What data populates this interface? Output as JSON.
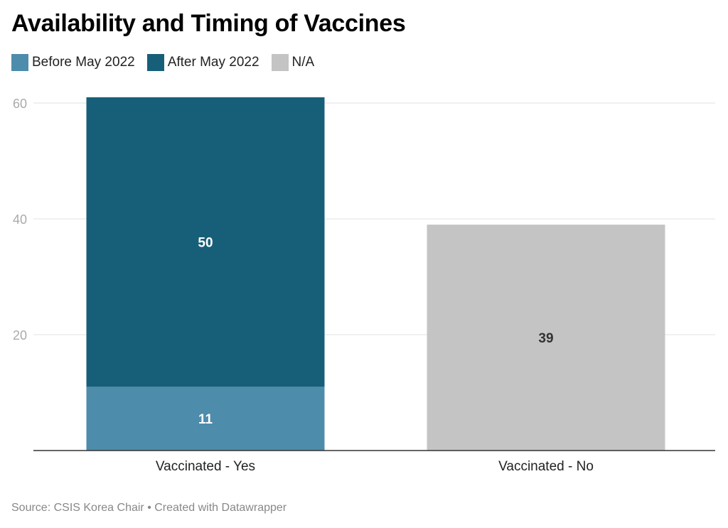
{
  "title": "Availability and Timing of Vaccines",
  "legend": [
    {
      "label": "Before May 2022",
      "color": "#4e8cab"
    },
    {
      "label": "After May 2022",
      "color": "#175f79"
    },
    {
      "label": "N/A",
      "color": "#c4c4c4"
    }
  ],
  "source": "Source: CSIS Korea Chair • Created with Datawrapper",
  "chart_data": {
    "type": "bar",
    "stacked": true,
    "title": "Availability and Timing of Vaccines",
    "categories": [
      "Vaccinated - Yes",
      "Vaccinated - No"
    ],
    "series": [
      {
        "name": "Before May 2022",
        "color": "#4e8cab",
        "values": [
          11,
          0
        ]
      },
      {
        "name": "After May 2022",
        "color": "#175f79",
        "values": [
          50,
          0
        ]
      },
      {
        "name": "N/A",
        "color": "#c4c4c4",
        "values": [
          0,
          39
        ]
      }
    ],
    "data_labels": [
      {
        "category": 0,
        "series": 0,
        "text": "11"
      },
      {
        "category": 0,
        "series": 1,
        "text": "50"
      },
      {
        "category": 1,
        "series": 2,
        "text": "39"
      }
    ],
    "y_ticks": [
      20,
      40,
      60
    ],
    "ylim": [
      0,
      61
    ],
    "grid": true,
    "legend_position": "top-left",
    "xlabel": "",
    "ylabel": ""
  }
}
